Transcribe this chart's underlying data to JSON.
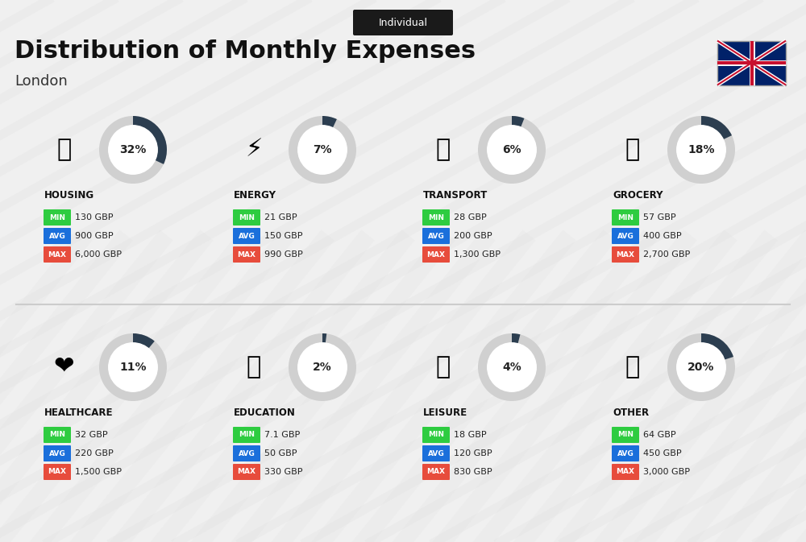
{
  "title": "Distribution of Monthly Expenses",
  "subtitle": "London",
  "tag": "Individual",
  "background_color": "#f0f0f0",
  "categories": [
    {
      "name": "HOUSING",
      "percent": 32,
      "min": "130 GBP",
      "avg": "900 GBP",
      "max": "6,000 GBP",
      "row": 0,
      "col": 0
    },
    {
      "name": "ENERGY",
      "percent": 7,
      "min": "21 GBP",
      "avg": "150 GBP",
      "max": "990 GBP",
      "row": 0,
      "col": 1
    },
    {
      "name": "TRANSPORT",
      "percent": 6,
      "min": "28 GBP",
      "avg": "200 GBP",
      "max": "1,300 GBP",
      "row": 0,
      "col": 2
    },
    {
      "name": "GROCERY",
      "percent": 18,
      "min": "57 GBP",
      "avg": "400 GBP",
      "max": "2,700 GBP",
      "row": 0,
      "col": 3
    },
    {
      "name": "HEALTHCARE",
      "percent": 11,
      "min": "32 GBP",
      "avg": "220 GBP",
      "max": "1,500 GBP",
      "row": 1,
      "col": 0
    },
    {
      "name": "EDUCATION",
      "percent": 2,
      "min": "7.1 GBP",
      "avg": "50 GBP",
      "max": "330 GBP",
      "row": 1,
      "col": 1
    },
    {
      "name": "LEISURE",
      "percent": 4,
      "min": "18 GBP",
      "avg": "120 GBP",
      "max": "830 GBP",
      "row": 1,
      "col": 2
    },
    {
      "name": "OTHER",
      "percent": 20,
      "min": "64 GBP",
      "avg": "450 GBP",
      "max": "3,000 GBP",
      "row": 1,
      "col": 3
    }
  ],
  "color_min": "#2ecc40",
  "color_avg": "#1a6fdb",
  "color_max": "#e74c3c",
  "color_arc_active": "#2c3e50",
  "color_arc_bg": "#d0d0d0",
  "label_color": "#222222",
  "tag_bg": "#1a1a1a",
  "tag_fg": "#ffffff"
}
